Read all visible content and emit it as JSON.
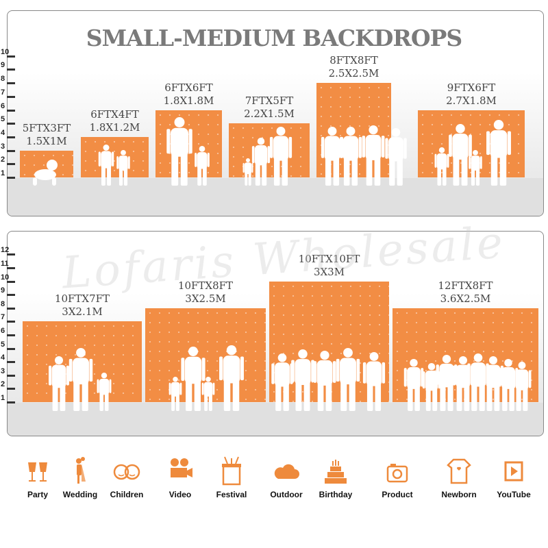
{
  "title": "SMALL-MEDIUM BACKDROPS",
  "watermark": "Lofaris Wholesale",
  "colors": {
    "backdrop": "#f28d44",
    "title": "#7a7a7a",
    "icon": "#ee8a3c"
  },
  "top_panel": {
    "scale_ticks": [
      "1",
      "2",
      "3",
      "4",
      "5",
      "6",
      "7",
      "8",
      "9",
      "10"
    ],
    "backdrops": [
      {
        "size_ft": "5FTX3FT",
        "size_m": "1.5X1M",
        "height_ft": 3
      },
      {
        "size_ft": "6FTX4FT",
        "size_m": "1.8X1.2M",
        "height_ft": 4
      },
      {
        "size_ft": "6FTX6FT",
        "size_m": "1.8X1.8M",
        "height_ft": 6
      },
      {
        "size_ft": "7FTX5FT",
        "size_m": "2.2X1.5M",
        "height_ft": 5
      },
      {
        "size_ft": "8FTX8FT",
        "size_m": "2.5X2.5M",
        "height_ft": 8
      },
      {
        "size_ft": "9FTX6FT",
        "size_m": "2.7X1.8M",
        "height_ft": 6
      }
    ]
  },
  "bottom_panel": {
    "scale_ticks": [
      "1",
      "2",
      "3",
      "4",
      "5",
      "6",
      "7",
      "8",
      "9",
      "10",
      "11",
      "12"
    ],
    "backdrops": [
      {
        "size_ft": "10FTX7FT",
        "size_m": "3X2.1M",
        "height_ft": 7
      },
      {
        "size_ft": "10FTX8FT",
        "size_m": "3X2.5M",
        "height_ft": 8
      },
      {
        "size_ft": "10FTX10FT",
        "size_m": "3X3M",
        "height_ft": 10
      },
      {
        "size_ft": "12FTX8FT",
        "size_m": "3.6X2.5M",
        "height_ft": 8
      }
    ]
  },
  "uses": [
    {
      "label": "Party",
      "icon": "champagne-glasses-icon"
    },
    {
      "label": "Wedding",
      "icon": "wedding-couple-icon"
    },
    {
      "label": "Children",
      "icon": "children-faces-icon"
    },
    {
      "label": "Video",
      "icon": "film-camera-icon"
    },
    {
      "label": "Festival",
      "icon": "gift-box-icon"
    },
    {
      "label": "Outdoor",
      "icon": "cloud-icon"
    },
    {
      "label": "Birthday",
      "icon": "birthday-cake-icon"
    },
    {
      "label": "Product",
      "icon": "camera-icon"
    },
    {
      "label": "Newborn",
      "icon": "baby-onesie-icon"
    },
    {
      "label": "YouTube",
      "icon": "play-button-icon"
    }
  ]
}
